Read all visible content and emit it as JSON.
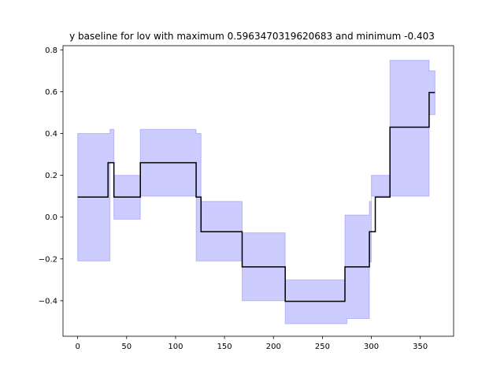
{
  "chart_data": {
    "type": "line",
    "title": "y baseline for lov with maximum 0.5963470319620683 and minimum -0.403",
    "xlabel": "",
    "ylabel": "",
    "xlim": [
      -15,
      384
    ],
    "ylim": [
      -0.57,
      0.82
    ],
    "x_ticks": [
      0,
      50,
      100,
      150,
      200,
      250,
      300,
      350
    ],
    "y_ticks": [
      -0.4,
      -0.2,
      0.0,
      0.2,
      0.4,
      0.6,
      0.8
    ],
    "x_tick_labels": [
      "0",
      "50",
      "100",
      "150",
      "200",
      "250",
      "300",
      "350"
    ],
    "y_tick_labels": [
      "−0.4",
      "−0.2",
      "0.0",
      "0.2",
      "0.4",
      "0.6",
      "0.8"
    ],
    "grid": false,
    "series": [
      {
        "kind": "step-line",
        "color": "#000000",
        "x": [
          0,
          31,
          31,
          37,
          37,
          64,
          64,
          121,
          121,
          126,
          126,
          168,
          168,
          212,
          212,
          273,
          273,
          298,
          298,
          304,
          304,
          319,
          319,
          359,
          359,
          365
        ],
        "y": [
          0.096,
          0.096,
          0.26,
          0.26,
          0.096,
          0.096,
          0.26,
          0.26,
          0.096,
          0.096,
          -0.07,
          -0.07,
          -0.238,
          -0.238,
          -0.403,
          -0.403,
          -0.238,
          -0.238,
          -0.07,
          -0.07,
          0.096,
          0.096,
          0.43,
          0.43,
          0.596,
          0.596
        ]
      },
      {
        "kind": "band",
        "color": "#0000ff",
        "opacity": 0.2,
        "x": [
          0,
          31,
          31,
          33,
          33,
          37,
          37,
          64,
          64,
          121,
          121,
          124,
          124,
          126,
          126,
          168,
          168,
          212,
          212,
          273,
          273,
          275,
          275,
          298,
          298,
          300,
          300,
          304,
          304,
          319,
          319,
          359,
          359,
          362,
          362,
          365
        ],
        "upper": [
          0.4,
          0.4,
          0.4,
          0.4,
          0.42,
          0.42,
          0.2,
          0.2,
          0.42,
          0.42,
          0.4,
          0.4,
          0.4,
          0.4,
          0.075,
          0.075,
          -0.075,
          -0.075,
          -0.3,
          -0.3,
          0.01,
          0.01,
          0.01,
          0.01,
          0.075,
          0.075,
          0.2,
          0.2,
          0.2,
          0.2,
          0.75,
          0.75,
          0.7,
          0.7,
          0.7,
          0.7
        ],
        "lower": [
          -0.21,
          -0.21,
          -0.21,
          -0.21,
          0.26,
          0.26,
          -0.01,
          -0.01,
          0.1,
          0.1,
          -0.21,
          -0.21,
          -0.21,
          -0.21,
          -0.21,
          -0.21,
          -0.4,
          -0.4,
          -0.51,
          -0.51,
          -0.51,
          -0.51,
          -0.485,
          -0.485,
          -0.215,
          -0.215,
          0.1,
          0.1,
          0.1,
          0.1,
          0.1,
          0.1,
          0.49,
          0.49,
          0.49,
          0.49
        ]
      }
    ]
  }
}
